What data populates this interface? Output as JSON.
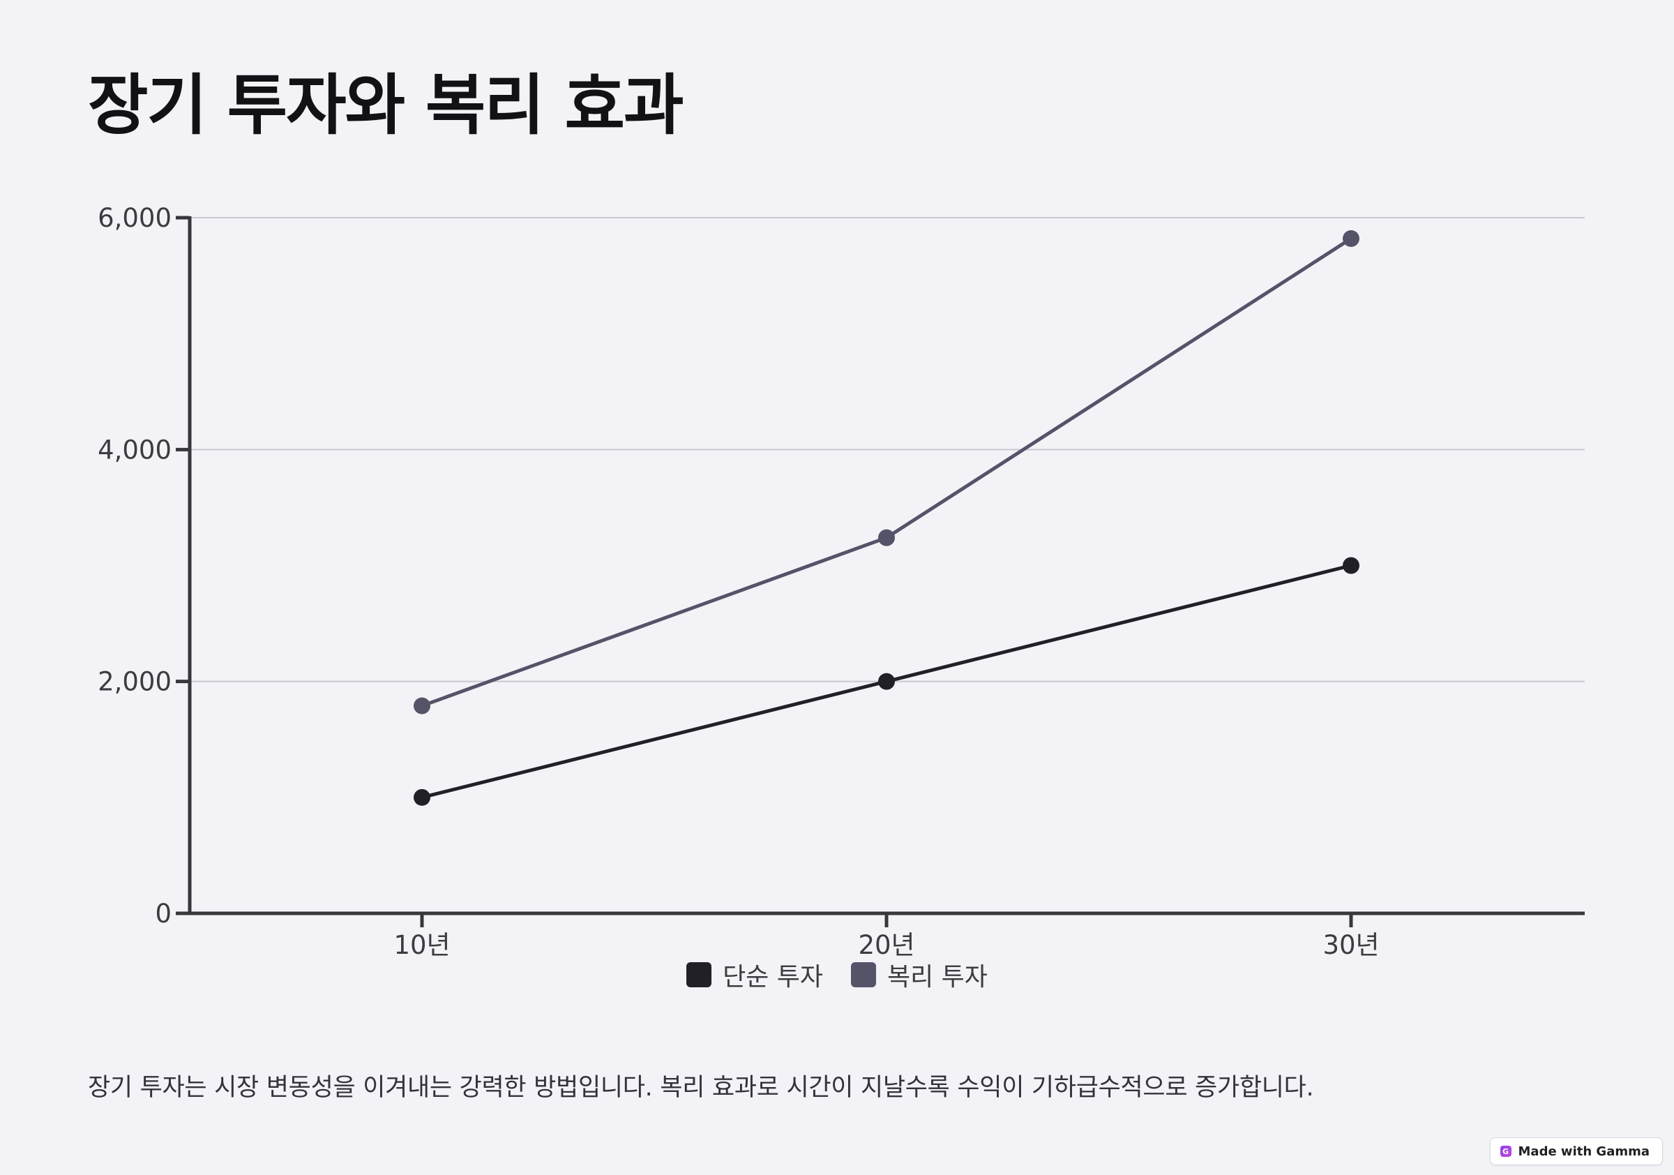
{
  "page": {
    "title": "장기 투자와 복리 효과",
    "description": "장기 투자는 시장 변동성을 이겨내는 강력한 방법입니다. 복리 효과로 시간이 지날수록 수익이 기하급수적으로 증가합니다."
  },
  "badge": {
    "label": "Made with Gamma",
    "icon": "gamma-logo-icon"
  },
  "colors": {
    "background": "#f3f2f7",
    "series_simple": "#212026",
    "series_compound": "#545368",
    "axis": "#38373c",
    "grid": "#c9c8cf"
  },
  "chart_data": {
    "type": "line",
    "title": "",
    "xlabel": "",
    "ylabel": "",
    "categories": [
      "10년",
      "20년",
      "30년"
    ],
    "series": [
      {
        "name": "단순 투자",
        "values": [
          1000,
          2000,
          3000
        ],
        "color": "#212026"
      },
      {
        "name": "복리 투자",
        "values": [
          1790,
          3240,
          5820
        ],
        "color": "#545368"
      }
    ],
    "ylim": [
      0,
      6000
    ],
    "yticks": [
      0,
      2000,
      4000,
      6000
    ],
    "ytick_labels": [
      "0",
      "2,000",
      "4,000",
      "6,000"
    ],
    "grid": true,
    "legend_position": "bottom-center"
  }
}
